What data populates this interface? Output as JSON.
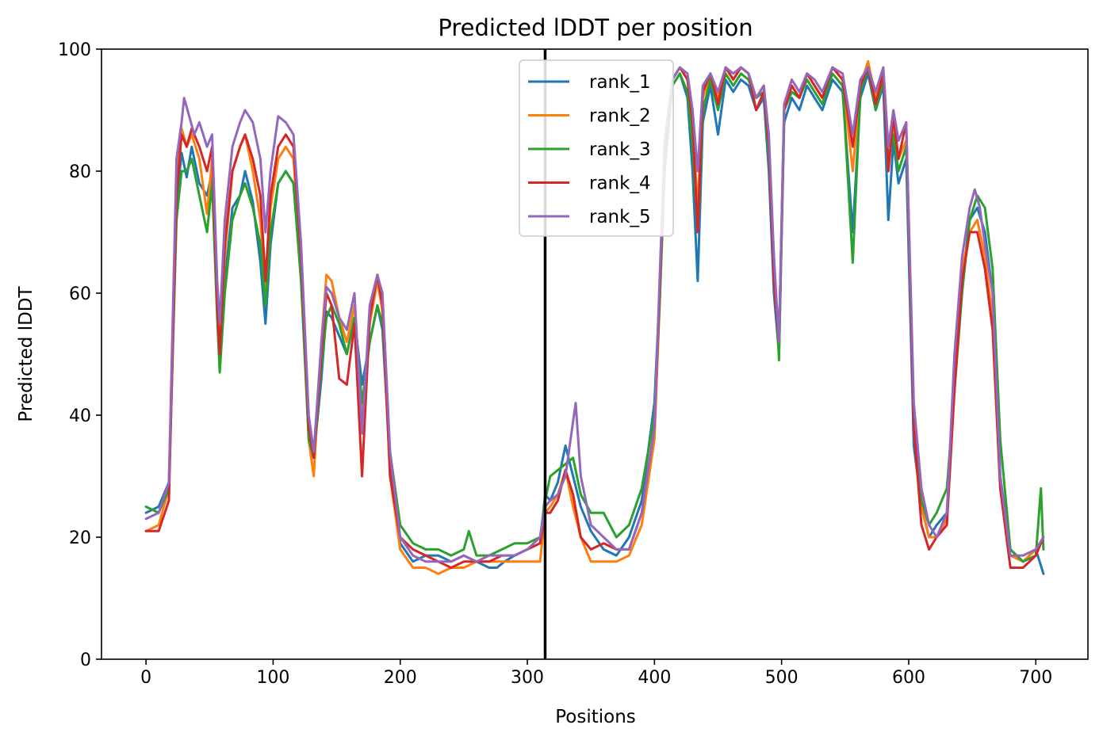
{
  "chart_data": {
    "type": "line",
    "title": "Predicted lDDT per position",
    "xlabel": "Positions",
    "ylabel": "Predicted lDDT",
    "xlim": [
      -35,
      741
    ],
    "ylim": [
      0,
      100
    ],
    "xticks": [
      0,
      100,
      200,
      300,
      400,
      500,
      600,
      700
    ],
    "yticks": [
      0,
      20,
      40,
      60,
      80,
      100
    ],
    "grid": false,
    "legend_position": "top-center",
    "vline_x": 314,
    "series": [
      {
        "name": "rank_1",
        "color": "#1f77b4",
        "x": [
          0,
          10,
          18,
          24,
          28,
          32,
          36,
          42,
          48,
          52,
          56,
          58,
          62,
          68,
          74,
          78,
          84,
          90,
          94,
          98,
          104,
          110,
          116,
          122,
          128,
          132,
          138,
          142,
          146,
          152,
          158,
          164,
          170,
          176,
          182,
          186,
          192,
          200,
          210,
          220,
          230,
          240,
          250,
          260,
          270,
          276,
          282,
          290,
          300,
          310,
          314,
          318,
          324,
          330,
          336,
          342,
          350,
          360,
          370,
          380,
          390,
          400,
          404,
          408,
          414,
          420,
          426,
          430,
          434,
          438,
          444,
          450,
          456,
          462,
          468,
          474,
          480,
          486,
          490,
          494,
          498,
          502,
          508,
          514,
          520,
          526,
          532,
          540,
          548,
          556,
          562,
          568,
          574,
          580,
          584,
          588,
          592,
          598,
          604,
          610,
          616,
          622,
          630,
          636,
          642,
          648,
          654,
          660,
          666,
          672,
          680,
          690,
          700,
          706
        ],
        "y": [
          24,
          25,
          29,
          75,
          83,
          79,
          84,
          78,
          76,
          80,
          58,
          48,
          62,
          74,
          76,
          80,
          75,
          65,
          55,
          68,
          78,
          80,
          78,
          62,
          38,
          33,
          46,
          57,
          56,
          53,
          50,
          56,
          45,
          52,
          58,
          54,
          32,
          19,
          16,
          17,
          17,
          16,
          17,
          16,
          15,
          15,
          16,
          17,
          18,
          19,
          27,
          26,
          29,
          35,
          30,
          25,
          21,
          18,
          17,
          20,
          26,
          42,
          60,
          80,
          94,
          96,
          92,
          80,
          62,
          88,
          94,
          86,
          95,
          93,
          95,
          94,
          90,
          92,
          80,
          60,
          50,
          88,
          92,
          90,
          94,
          92,
          90,
          95,
          93,
          70,
          92,
          96,
          90,
          94,
          72,
          85,
          78,
          82,
          35,
          25,
          20,
          22,
          24,
          45,
          62,
          72,
          74,
          70,
          60,
          30,
          18,
          16,
          18,
          14
        ]
      },
      {
        "name": "rank_2",
        "color": "#ff7f0e",
        "x": [
          0,
          10,
          18,
          24,
          28,
          32,
          36,
          42,
          48,
          52,
          56,
          58,
          62,
          68,
          74,
          78,
          84,
          90,
          94,
          98,
          104,
          110,
          116,
          122,
          128,
          132,
          138,
          142,
          146,
          152,
          158,
          164,
          170,
          176,
          182,
          186,
          192,
          200,
          210,
          220,
          230,
          240,
          250,
          260,
          270,
          280,
          290,
          300,
          310,
          314,
          318,
          324,
          330,
          336,
          342,
          350,
          360,
          370,
          380,
          390,
          400,
          404,
          408,
          414,
          420,
          426,
          430,
          434,
          438,
          444,
          450,
          456,
          462,
          468,
          474,
          480,
          486,
          490,
          494,
          498,
          502,
          508,
          514,
          520,
          526,
          532,
          540,
          548,
          556,
          562,
          568,
          574,
          580,
          584,
          588,
          592,
          598,
          604,
          610,
          616,
          622,
          630,
          636,
          642,
          648,
          654,
          660,
          666,
          672,
          680,
          690,
          700,
          706
        ],
        "y": [
          21,
          22,
          28,
          78,
          87,
          84,
          86,
          82,
          73,
          82,
          60,
          52,
          66,
          80,
          84,
          86,
          80,
          72,
          60,
          74,
          82,
          84,
          82,
          64,
          36,
          30,
          52,
          63,
          62,
          56,
          52,
          58,
          40,
          55,
          62,
          57,
          30,
          18,
          15,
          15,
          14,
          15,
          15,
          16,
          16,
          16,
          16,
          16,
          16,
          24,
          25,
          27,
          31,
          25,
          20,
          16,
          16,
          16,
          17,
          22,
          36,
          58,
          82,
          95,
          97,
          95,
          88,
          74,
          92,
          96,
          92,
          97,
          95,
          97,
          96,
          92,
          94,
          84,
          64,
          52,
          90,
          94,
          92,
          96,
          94,
          92,
          97,
          95,
          80,
          94,
          98,
          92,
          96,
          80,
          88,
          82,
          85,
          40,
          25,
          20,
          20,
          23,
          48,
          64,
          70,
          72,
          66,
          56,
          28,
          17,
          16,
          18,
          20
        ]
      },
      {
        "name": "rank_3",
        "color": "#2ca02c",
        "x": [
          0,
          10,
          18,
          24,
          28,
          32,
          36,
          42,
          48,
          52,
          56,
          58,
          62,
          68,
          74,
          78,
          84,
          90,
          94,
          98,
          104,
          110,
          116,
          122,
          128,
          132,
          138,
          142,
          146,
          152,
          158,
          164,
          170,
          176,
          182,
          186,
          192,
          200,
          210,
          220,
          230,
          240,
          250,
          254,
          260,
          270,
          280,
          290,
          300,
          310,
          314,
          318,
          324,
          330,
          336,
          342,
          350,
          360,
          370,
          380,
          390,
          400,
          404,
          408,
          414,
          420,
          426,
          430,
          434,
          438,
          444,
          450,
          456,
          462,
          468,
          474,
          480,
          486,
          490,
          494,
          498,
          502,
          508,
          514,
          520,
          526,
          532,
          540,
          548,
          556,
          562,
          568,
          574,
          580,
          584,
          588,
          592,
          598,
          604,
          610,
          616,
          622,
          630,
          636,
          642,
          648,
          654,
          660,
          666,
          672,
          680,
          690,
          700,
          704,
          706
        ],
        "y": [
          25,
          24,
          28,
          72,
          80,
          80,
          82,
          76,
          70,
          78,
          56,
          47,
          60,
          72,
          76,
          78,
          74,
          68,
          58,
          70,
          78,
          80,
          78,
          62,
          36,
          33,
          48,
          56,
          58,
          55,
          50,
          56,
          42,
          52,
          58,
          55,
          34,
          22,
          19,
          18,
          18,
          17,
          18,
          21,
          17,
          17,
          18,
          19,
          19,
          20,
          26,
          30,
          31,
          32,
          33,
          27,
          24,
          24,
          20,
          22,
          28,
          40,
          58,
          80,
          94,
          96,
          93,
          84,
          70,
          90,
          95,
          90,
          96,
          94,
          96,
          95,
          92,
          93,
          82,
          66,
          49,
          90,
          93,
          92,
          95,
          93,
          91,
          96,
          94,
          65,
          93,
          97,
          90,
          95,
          82,
          86,
          80,
          84,
          40,
          26,
          22,
          24,
          28,
          44,
          60,
          72,
          76,
          74,
          64,
          36,
          18,
          16,
          17,
          28,
          18
        ]
      },
      {
        "name": "rank_4",
        "color": "#d62728",
        "x": [
          0,
          10,
          18,
          24,
          28,
          32,
          36,
          42,
          48,
          52,
          56,
          58,
          62,
          68,
          74,
          78,
          84,
          90,
          94,
          98,
          104,
          110,
          116,
          122,
          128,
          132,
          138,
          142,
          146,
          152,
          158,
          164,
          170,
          176,
          182,
          186,
          192,
          200,
          210,
          220,
          230,
          240,
          250,
          260,
          270,
          280,
          290,
          300,
          310,
          314,
          318,
          324,
          330,
          336,
          342,
          350,
          360,
          370,
          380,
          390,
          400,
          404,
          408,
          414,
          420,
          426,
          430,
          434,
          438,
          444,
          450,
          456,
          462,
          468,
          474,
          480,
          486,
          490,
          494,
          498,
          502,
          508,
          514,
          520,
          526,
          532,
          540,
          548,
          556,
          562,
          568,
          574,
          580,
          584,
          588,
          592,
          598,
          604,
          610,
          616,
          622,
          630,
          636,
          642,
          648,
          654,
          660,
          666,
          672,
          680,
          690,
          700,
          706
        ],
        "y": [
          21,
          21,
          26,
          76,
          86,
          84,
          87,
          84,
          80,
          84,
          58,
          50,
          68,
          80,
          84,
          86,
          82,
          76,
          62,
          76,
          84,
          86,
          84,
          66,
          38,
          33,
          50,
          60,
          58,
          46,
          45,
          55,
          30,
          56,
          63,
          58,
          30,
          20,
          18,
          17,
          16,
          15,
          16,
          16,
          16,
          17,
          17,
          18,
          19,
          24,
          24,
          26,
          31,
          27,
          20,
          18,
          19,
          18,
          18,
          24,
          38,
          60,
          84,
          95,
          97,
          95,
          88,
          70,
          93,
          96,
          91,
          97,
          95,
          97,
          96,
          90,
          93,
          84,
          62,
          52,
          90,
          94,
          92,
          96,
          94,
          92,
          97,
          95,
          84,
          94,
          97,
          91,
          96,
          80,
          89,
          82,
          88,
          38,
          22,
          18,
          20,
          22,
          44,
          62,
          70,
          70,
          64,
          54,
          28,
          15,
          15,
          17,
          20
        ]
      },
      {
        "name": "rank_5",
        "color": "#9467bd",
        "x": [
          0,
          10,
          18,
          24,
          28,
          30,
          34,
          38,
          42,
          48,
          52,
          56,
          58,
          62,
          68,
          74,
          78,
          84,
          90,
          94,
          98,
          104,
          110,
          116,
          122,
          128,
          132,
          138,
          142,
          146,
          152,
          158,
          164,
          170,
          176,
          182,
          186,
          192,
          200,
          210,
          220,
          230,
          240,
          250,
          260,
          270,
          280,
          290,
          300,
          310,
          314,
          318,
          324,
          330,
          334,
          338,
          342,
          350,
          360,
          370,
          380,
          390,
          400,
          404,
          408,
          414,
          420,
          426,
          430,
          434,
          438,
          444,
          450,
          456,
          462,
          468,
          474,
          480,
          486,
          490,
          494,
          498,
          502,
          508,
          514,
          520,
          526,
          532,
          540,
          548,
          556,
          562,
          568,
          574,
          580,
          584,
          588,
          592,
          598,
          604,
          610,
          616,
          622,
          630,
          636,
          642,
          648,
          652,
          656,
          660,
          666,
          672,
          680,
          690,
          700,
          706
        ],
        "y": [
          23,
          24,
          29,
          82,
          88,
          92,
          89,
          86,
          88,
          84,
          86,
          62,
          55,
          72,
          84,
          88,
          90,
          88,
          82,
          70,
          80,
          89,
          88,
          86,
          68,
          40,
          34,
          52,
          61,
          60,
          56,
          54,
          60,
          37,
          58,
          63,
          60,
          34,
          20,
          17,
          16,
          16,
          16,
          17,
          16,
          17,
          17,
          17,
          18,
          20,
          25,
          26,
          27,
          30,
          36,
          42,
          30,
          22,
          20,
          18,
          18,
          24,
          38,
          62,
          85,
          95,
          97,
          96,
          90,
          80,
          94,
          96,
          93,
          97,
          96,
          97,
          96,
          92,
          94,
          86,
          66,
          52,
          91,
          95,
          93,
          96,
          95,
          93,
          97,
          96,
          86,
          95,
          97,
          93,
          97,
          84,
          90,
          85,
          88,
          42,
          28,
          22,
          20,
          24,
          50,
          66,
          74,
          77,
          74,
          68,
          60,
          30,
          17,
          17,
          18,
          20
        ]
      }
    ]
  }
}
